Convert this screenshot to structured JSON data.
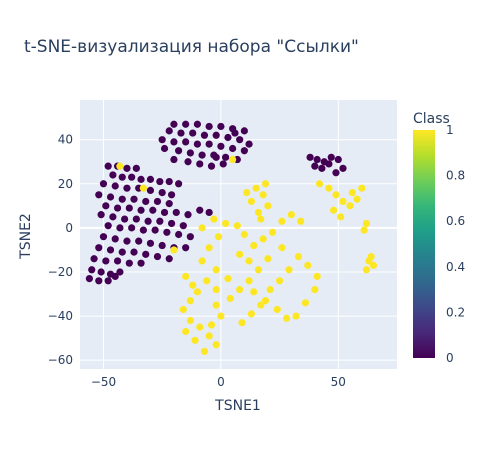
{
  "chart_data": {
    "type": "scatter",
    "title": "t-SNE-визуализация набора \"Ссылки\"",
    "xlabel": "TSNE1",
    "ylabel": "TSNE2",
    "xlim": [
      -60,
      75
    ],
    "ylim": [
      -64,
      58
    ],
    "x_ticks": [
      -50,
      0,
      50
    ],
    "x_tick_labels": [
      "−50",
      "0",
      "50"
    ],
    "y_ticks": [
      -60,
      -40,
      -20,
      0,
      20,
      40
    ],
    "y_tick_labels": [
      "−60",
      "−40",
      "−20",
      "0",
      "20",
      "40"
    ],
    "grid": true,
    "colorscale": "Viridis",
    "colorbar": {
      "title": "Class",
      "range": [
        0,
        1
      ],
      "ticks": [
        0,
        0.2,
        0.4,
        0.6,
        0.8,
        1
      ],
      "tick_labels": [
        "0",
        "0.2",
        "0.4",
        "0.6",
        "0.8",
        "1"
      ]
    },
    "colors": {
      "class_0": "#440154",
      "class_1": "#fde725",
      "plot_bg": "#e5ecf6",
      "grid": "#ffffff"
    },
    "series": [
      {
        "class": 0,
        "points": [
          [
            -20,
            47
          ],
          [
            -15,
            47
          ],
          [
            -10,
            47
          ],
          [
            -5,
            46
          ],
          [
            0,
            46
          ],
          [
            5,
            45
          ],
          [
            10,
            44
          ],
          [
            -22,
            44
          ],
          [
            -17,
            43
          ],
          [
            -12,
            43
          ],
          [
            -7,
            42
          ],
          [
            -2,
            42
          ],
          [
            3,
            41
          ],
          [
            8,
            40
          ],
          [
            -25,
            40
          ],
          [
            -20,
            39
          ],
          [
            -15,
            39
          ],
          [
            -10,
            38
          ],
          [
            -5,
            38
          ],
          [
            0,
            37
          ],
          [
            5,
            36
          ],
          [
            10,
            35
          ],
          [
            -24,
            36
          ],
          [
            -18,
            35
          ],
          [
            -13,
            34
          ],
          [
            -8,
            33
          ],
          [
            -3,
            33
          ],
          [
            2,
            32
          ],
          [
            7,
            31
          ],
          [
            -20,
            31
          ],
          [
            -14,
            30
          ],
          [
            -9,
            29
          ],
          [
            -4,
            28
          ],
          [
            1,
            29
          ],
          [
            -48,
            28
          ],
          [
            -44,
            28
          ],
          [
            -40,
            27
          ],
          [
            -36,
            27
          ],
          [
            -46,
            24
          ],
          [
            -42,
            23
          ],
          [
            -38,
            23
          ],
          [
            -34,
            22
          ],
          [
            -30,
            22
          ],
          [
            -26,
            21
          ],
          [
            -22,
            21
          ],
          [
            -18,
            20
          ],
          [
            -50,
            20
          ],
          [
            -45,
            19
          ],
          [
            -40,
            18
          ],
          [
            -35,
            18
          ],
          [
            -30,
            17
          ],
          [
            -25,
            16
          ],
          [
            -21,
            15
          ],
          [
            -52,
            15
          ],
          [
            -47,
            14
          ],
          [
            -42,
            13
          ],
          [
            -37,
            13
          ],
          [
            -32,
            12
          ],
          [
            -27,
            12
          ],
          [
            -22,
            11
          ],
          [
            -49,
            10
          ],
          [
            -44,
            9
          ],
          [
            -39,
            9
          ],
          [
            -34,
            8
          ],
          [
            -29,
            8
          ],
          [
            -24,
            7
          ],
          [
            -19,
            7
          ],
          [
            -14,
            6
          ],
          [
            -9,
            8
          ],
          [
            -5,
            7
          ],
          [
            -51,
            6
          ],
          [
            -46,
            5
          ],
          [
            -41,
            4
          ],
          [
            -36,
            4
          ],
          [
            -31,
            3
          ],
          [
            -26,
            3
          ],
          [
            -21,
            2
          ],
          [
            -16,
            1
          ],
          [
            -48,
            1
          ],
          [
            -43,
            0
          ],
          [
            -38,
            0
          ],
          [
            -33,
            -1
          ],
          [
            -28,
            -1
          ],
          [
            -23,
            -2
          ],
          [
            -18,
            -3
          ],
          [
            -13,
            -4
          ],
          [
            -50,
            -4
          ],
          [
            -45,
            -5
          ],
          [
            -40,
            -6
          ],
          [
            -35,
            -6
          ],
          [
            -30,
            -7
          ],
          [
            -25,
            -8
          ],
          [
            -20,
            -9
          ],
          [
            -15,
            -9
          ],
          [
            -52,
            -9
          ],
          [
            -47,
            -10
          ],
          [
            -42,
            -11
          ],
          [
            -37,
            -11
          ],
          [
            -32,
            -12
          ],
          [
            -27,
            -13
          ],
          [
            -22,
            -14
          ],
          [
            -54,
            -14
          ],
          [
            -49,
            -15
          ],
          [
            -44,
            -15
          ],
          [
            -39,
            -16
          ],
          [
            -34,
            -16
          ],
          [
            -55,
            -19
          ],
          [
            -51,
            -20
          ],
          [
            -47,
            -21
          ],
          [
            -43,
            -20
          ],
          [
            -56,
            -23
          ],
          [
            -52,
            -24
          ],
          [
            -48,
            -24
          ],
          [
            -45,
            -22
          ],
          [
            -2,
            32
          ],
          [
            12,
            38
          ],
          [
            6,
            43
          ],
          [
            38,
            32
          ],
          [
            41,
            31
          ],
          [
            44,
            30
          ],
          [
            47,
            32
          ],
          [
            50,
            31
          ],
          [
            40,
            28
          ],
          [
            43,
            27
          ],
          [
            46,
            29
          ],
          [
            52,
            27
          ],
          [
            49,
            25
          ]
        ]
      },
      {
        "class": 1,
        "points": [
          [
            -43,
            28
          ],
          [
            -33,
            18
          ],
          [
            5,
            31
          ],
          [
            -20,
            -10
          ],
          [
            -5,
            -9
          ],
          [
            -1,
            -4
          ],
          [
            -8,
            0
          ],
          [
            -3,
            4
          ],
          [
            2,
            2
          ],
          [
            7,
            1
          ],
          [
            10,
            -3
          ],
          [
            14,
            -8
          ],
          [
            18,
            -5
          ],
          [
            22,
            -2
          ],
          [
            26,
            3
          ],
          [
            30,
            6
          ],
          [
            34,
            3
          ],
          [
            26,
            -9
          ],
          [
            20,
            -14
          ],
          [
            16,
            -19
          ],
          [
            12,
            -24
          ],
          [
            8,
            -28
          ],
          [
            4,
            -32
          ],
          [
            14,
            -29
          ],
          [
            19,
            -33
          ],
          [
            24,
            -37
          ],
          [
            28,
            -41
          ],
          [
            32,
            -40
          ],
          [
            36,
            -34
          ],
          [
            40,
            -28
          ],
          [
            41,
            -22
          ],
          [
            37,
            -17
          ],
          [
            33,
            -13
          ],
          [
            29,
            -19
          ],
          [
            25,
            -24
          ],
          [
            21,
            -28
          ],
          [
            17,
            -35
          ],
          [
            13,
            -39
          ],
          [
            9,
            -43
          ],
          [
            -2,
            -19
          ],
          [
            -6,
            -24
          ],
          [
            -10,
            -29
          ],
          [
            -13,
            -33
          ],
          [
            -16,
            -37
          ],
          [
            -13,
            -42
          ],
          [
            -9,
            -45
          ],
          [
            -5,
            -49
          ],
          [
            -2,
            -53
          ],
          [
            -7,
            -56
          ],
          [
            -11,
            -51
          ],
          [
            -15,
            -47
          ],
          [
            -4,
            -44
          ],
          [
            0,
            -40
          ],
          [
            -2,
            -35
          ],
          [
            -12,
            -26
          ],
          [
            -15,
            -22
          ],
          [
            -8,
            -15
          ],
          [
            -2,
            -28
          ],
          [
            3,
            -23
          ],
          [
            8,
            -12
          ],
          [
            12,
            -15
          ],
          [
            15,
            18
          ],
          [
            18,
            15
          ],
          [
            20,
            10
          ],
          [
            16,
            7
          ],
          [
            13,
            12
          ],
          [
            19,
            20
          ],
          [
            11,
            16
          ],
          [
            17,
            4
          ],
          [
            42,
            20
          ],
          [
            46,
            18
          ],
          [
            49,
            15
          ],
          [
            52,
            12
          ],
          [
            55,
            10
          ],
          [
            48,
            8
          ],
          [
            51,
            5
          ],
          [
            56,
            16
          ],
          [
            60,
            18
          ],
          [
            58,
            13
          ],
          [
            61,
            -1
          ],
          [
            62,
            2
          ],
          [
            63,
            -15
          ],
          [
            65,
            -17
          ],
          [
            62,
            -19
          ],
          [
            64,
            -13
          ]
        ]
      }
    ]
  }
}
